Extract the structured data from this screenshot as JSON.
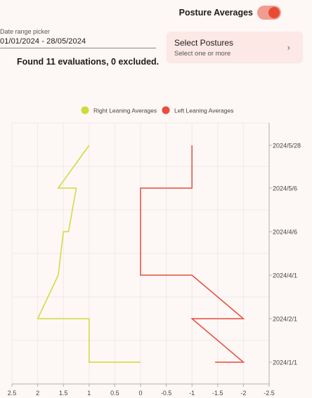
{
  "header": {
    "toggle_label": "Posture Averages",
    "toggle_on": true
  },
  "date_picker": {
    "label": "Date range picker",
    "value": "01/01/2024 - 28/05/2024"
  },
  "select_postures": {
    "title": "Select Postures",
    "subtitle": "Select one or more",
    "chevron": "chevron-right-icon"
  },
  "summary": "Found 11 evaluations, 0 excluded.",
  "colors": {
    "background": "#fdf7f5",
    "toggle_track": "#f09c90",
    "toggle_knob": "#e84a35",
    "right_series": "#cddc39",
    "left_series": "#e74c3c",
    "grid": "#eeeaea"
  },
  "chart_data": {
    "type": "line",
    "orientation": "values on horizontal axis, dates on vertical axis",
    "xlim": [
      2.5,
      -2.5
    ],
    "x_ticks": [
      "2.5",
      "2",
      "1.5",
      "1",
      "0.5",
      "0",
      "-0.5",
      "-1",
      "-1.5",
      "-2",
      "-2.5"
    ],
    "y_ticks": [
      "2024/1/1",
      "2024/2/1",
      "2024/4/1",
      "2024/4/6",
      "2024/5/6",
      "2024/5/28"
    ],
    "legend_position": "top-center",
    "grid": true,
    "series": [
      {
        "name": "Right Leaning Averages",
        "color": "#cddc39",
        "points": [
          {
            "x": 0,
            "y": "2024/1/1"
          },
          {
            "x": 1,
            "y": "2024/1/1"
          },
          {
            "x": 1,
            "y": "2024/2/1"
          },
          {
            "x": 2,
            "y": "2024/2/1"
          },
          {
            "x": 1.6,
            "y": "2024/4/1"
          },
          {
            "x": 1.5,
            "y": "2024/4/6"
          },
          {
            "x": 1.4,
            "y": "2024/4/6"
          },
          {
            "x": 1.25,
            "y": "2024/5/6"
          },
          {
            "x": 1.6,
            "y": "2024/5/6"
          },
          {
            "x": 1,
            "y": "2024/5/28"
          }
        ]
      },
      {
        "name": "Left Leaning Averages",
        "color": "#e74c3c",
        "points": [
          {
            "x": -1.45,
            "y": "2024/1/1"
          },
          {
            "x": -2,
            "y": "2024/1/1"
          },
          {
            "x": -1,
            "y": "2024/2/1"
          },
          {
            "x": -2,
            "y": "2024/2/1"
          },
          {
            "x": -1,
            "y": "2024/4/1"
          },
          {
            "x": 0,
            "y": "2024/4/1"
          },
          {
            "x": 0,
            "y": "2024/5/6"
          },
          {
            "x": -1,
            "y": "2024/5/6"
          },
          {
            "x": -1,
            "y": "2024/5/28"
          }
        ]
      }
    ]
  }
}
